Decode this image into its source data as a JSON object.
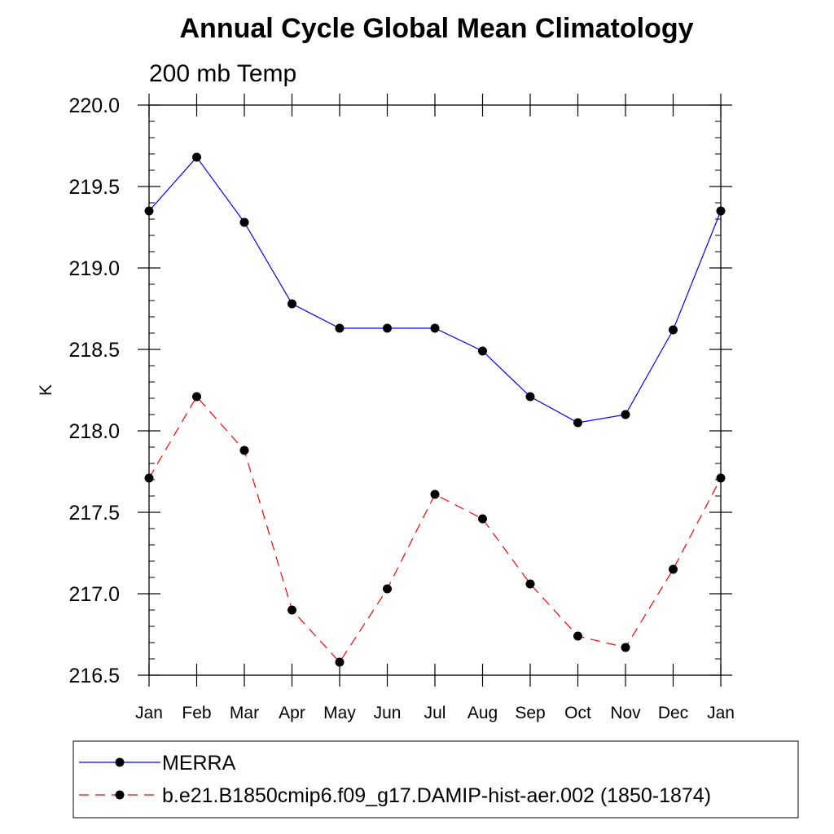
{
  "chart_data": {
    "type": "line",
    "title": "Annual Cycle Global Mean Climatology",
    "subtitle": "200 mb Temp",
    "xlabel": "",
    "ylabel": "K",
    "categories": [
      "Jan",
      "Feb",
      "Mar",
      "Apr",
      "May",
      "Jun",
      "Jul",
      "Aug",
      "Sep",
      "Oct",
      "Nov",
      "Dec",
      "Jan"
    ],
    "ylim": [
      216.5,
      220.0
    ],
    "yticks": [
      "216.5",
      "217.0",
      "217.5",
      "218.0",
      "218.5",
      "219.0",
      "219.5",
      "220.0"
    ],
    "grid": false,
    "legend_position": "bottom",
    "series": [
      {
        "name": "MERRA",
        "color": "#0000ff",
        "dash": "solid",
        "marker": "filled-circle",
        "values": [
          219.35,
          219.68,
          219.28,
          218.78,
          218.63,
          218.63,
          218.63,
          218.49,
          218.21,
          218.05,
          218.1,
          218.62,
          219.35
        ]
      },
      {
        "name": "b.e21.B1850cmip6.f09_g17.DAMIP-hist-aer.002 (1850-1874)",
        "color": "#ff0000",
        "dash": "dashed",
        "marker": "filled-circle",
        "values": [
          217.71,
          218.21,
          217.88,
          216.9,
          216.58,
          217.03,
          217.61,
          217.46,
          217.06,
          216.74,
          216.67,
          217.15,
          217.71
        ]
      }
    ]
  }
}
